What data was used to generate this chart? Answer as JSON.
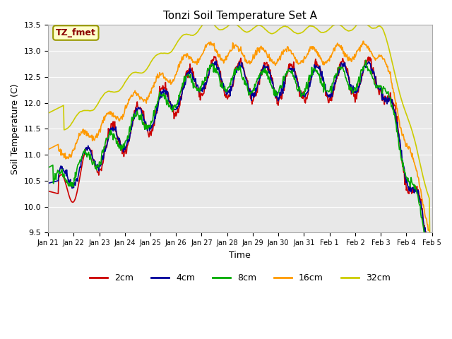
{
  "title": "Tonzi Soil Temperature Set A",
  "xlabel": "Time",
  "ylabel": "Soil Temperature (C)",
  "ylim": [
    9.5,
    13.5
  ],
  "xtick_labels": [
    "Jan 21",
    "Jan 22",
    "Jan 23",
    "Jan 24",
    "Jan 25",
    "Jan 26",
    "Jan 27",
    "Jan 28",
    "Jan 29",
    "Jan 30",
    "Jan 31",
    "Feb 1",
    "Feb 2",
    "Feb 3",
    "Feb 4",
    "Feb 5"
  ],
  "colors": {
    "2cm": "#cc0000",
    "4cm": "#000099",
    "8cm": "#00aa00",
    "16cm": "#ff9900",
    "32cm": "#cccc00"
  },
  "legend_label": "TZ_fmet",
  "legend_bg": "#ffffcc",
  "legend_border": "#999900",
  "bg_color": "#e8e8e8",
  "line_width": 1.2
}
